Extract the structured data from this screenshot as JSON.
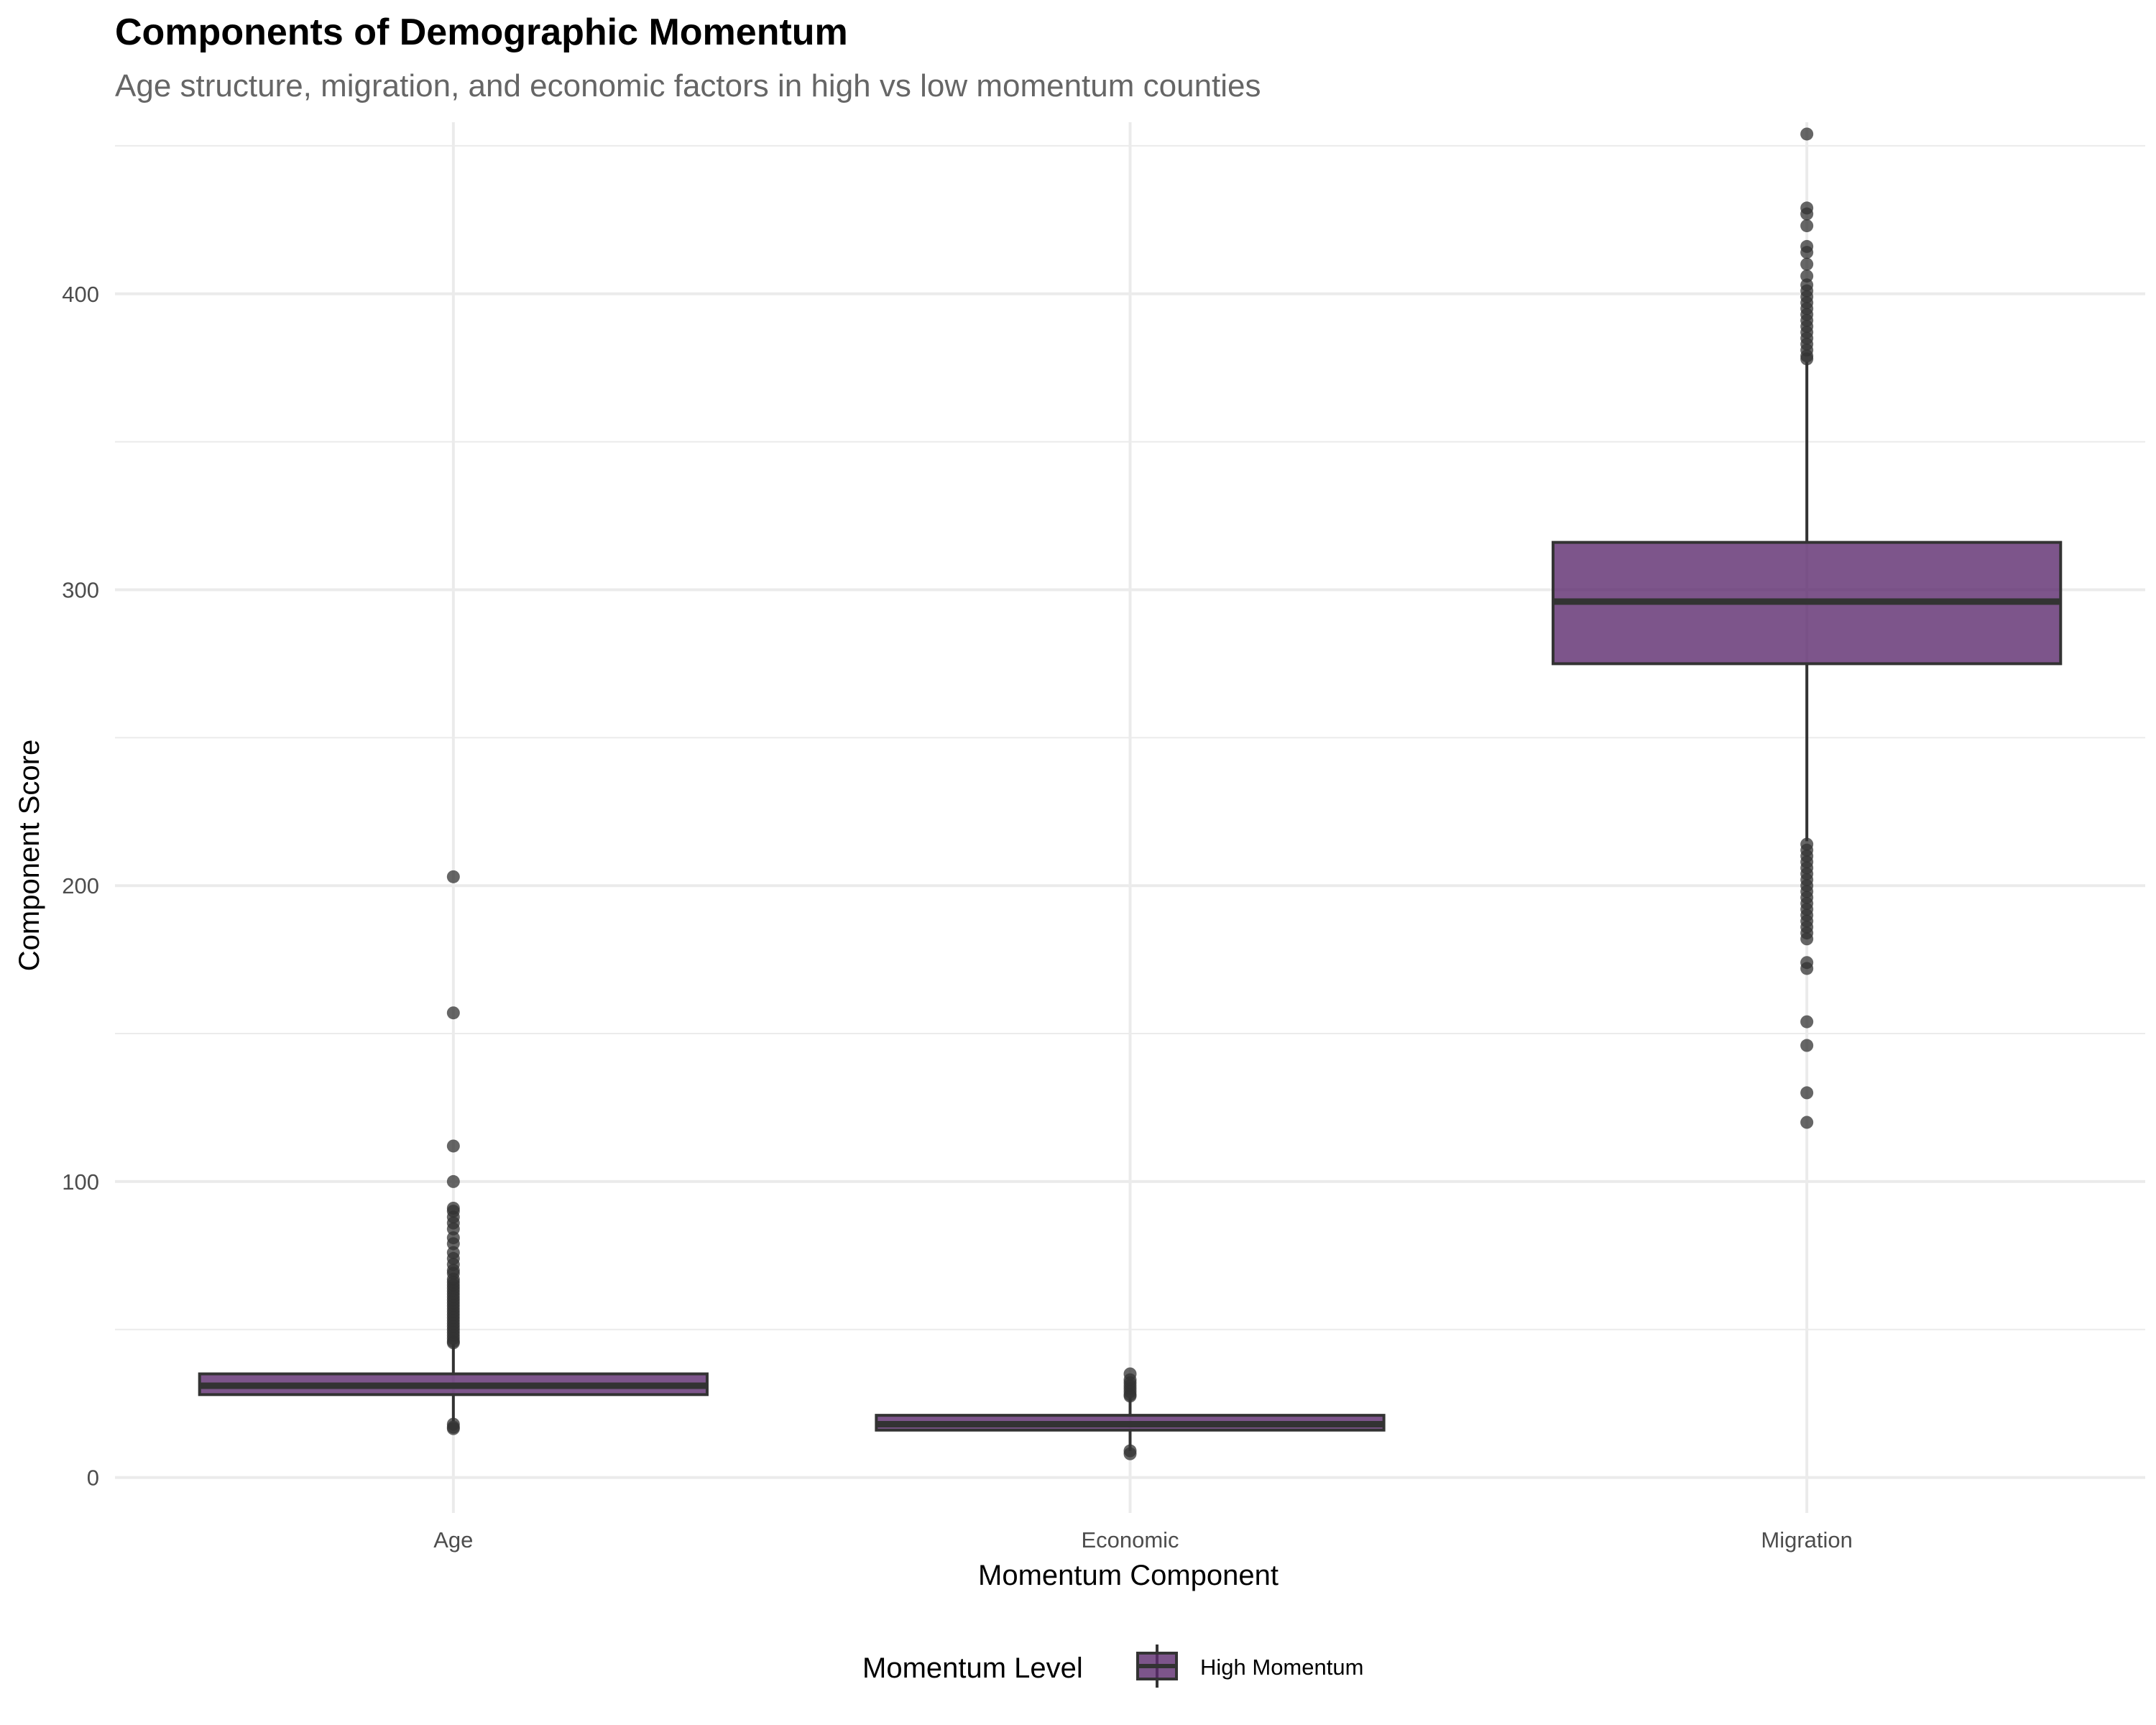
{
  "chart_data": {
    "type": "box",
    "title": "Components of Demographic Momentum",
    "subtitle": "Age structure, migration, and economic factors in high vs low momentum counties",
    "xlabel": "Momentum Component",
    "ylabel": "Component Score",
    "ylim": [
      -12,
      458
    ],
    "yticks": [
      0,
      100,
      200,
      300,
      400
    ],
    "categories": [
      "Age",
      "Economic",
      "Migration"
    ],
    "grid": true,
    "legend": {
      "title": "Momentum Level",
      "position": "bottom",
      "entries": [
        "High Momentum"
      ]
    },
    "series": [
      {
        "name": "High Momentum",
        "color": "#5c2a6e",
        "boxes": [
          {
            "category": "Age",
            "min": 19,
            "q1": 28,
            "median": 31,
            "q3": 35,
            "max": 45,
            "outliers": [
              203,
              157,
              112,
              100,
              91,
              90,
              88,
              86,
              84,
              81,
              79,
              76,
              74,
              72,
              70,
              69,
              67,
              66,
              65,
              64,
              63,
              62,
              61,
              60,
              59,
              58,
              57,
              56,
              55,
              54,
              53,
              52,
              51,
              50,
              49,
              48,
              47,
              46,
              45.5,
              18,
              17,
              16.5
            ]
          },
          {
            "category": "Economic",
            "min": 9,
            "q1": 16,
            "median": 18,
            "q3": 21,
            "max": 27,
            "outliers": [
              35,
              33,
              32,
              31,
              30,
              29,
              28,
              27.5,
              9,
              8
            ]
          },
          {
            "category": "Migration",
            "min": 215,
            "q1": 275,
            "median": 296,
            "q3": 316,
            "max": 377,
            "outliers": [
              454,
              429,
              427,
              423,
              416,
              414,
              410,
              406,
              403,
              401,
              399,
              397,
              395,
              393,
              391,
              389,
              387,
              385,
              383,
              381,
              379,
              378,
              214,
              212,
              210,
              208,
              206,
              204,
              202,
              200,
              198,
              196,
              194,
              192,
              190,
              188,
              186,
              184,
              182,
              174,
              172,
              154,
              146,
              130,
              120
            ]
          }
        ]
      }
    ]
  }
}
